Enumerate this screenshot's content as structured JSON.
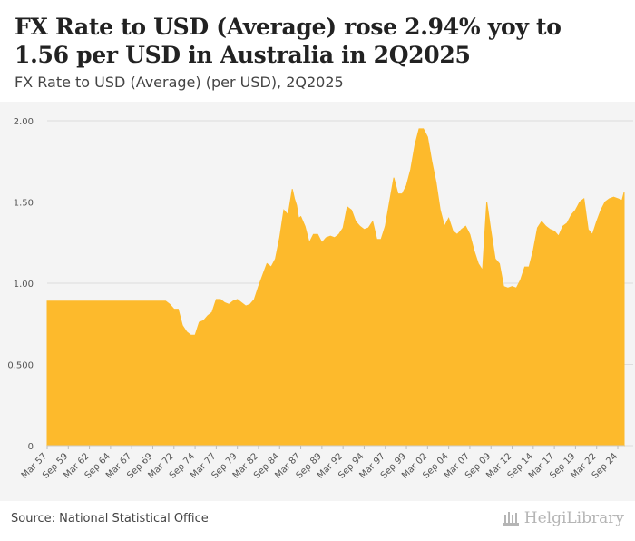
{
  "title": "FX Rate to USD (Average) rose 2.94% yoy to 1.56 per USD in Australia in 2Q2025",
  "subtitle": "FX Rate to USD (Average) (per USD), 2Q2025",
  "source": "Source: National Statistical Office",
  "brand": "HelgiLibrary",
  "colors": {
    "fill": "#FDBA2C",
    "grid": "#dddddd",
    "axis_text": "#555555",
    "background": "#f4f4f4"
  },
  "chart_data": {
    "type": "area",
    "title": "FX Rate to USD (Average) (per USD), 2Q2025",
    "xlabel": "",
    "ylabel": "per USD",
    "ylim": [
      0,
      2
    ],
    "yticks": [
      0,
      0.5,
      1.0,
      1.5,
      2.0
    ],
    "ytick_labels": [
      "0",
      "0.500",
      "1.00",
      "1.50",
      "2.00"
    ],
    "grid": true,
    "x_range": [
      1957.0,
      2025.25
    ],
    "xtick_labels": [
      "Mar 57",
      "Sep 59",
      "Mar 62",
      "Sep 64",
      "Mar 67",
      "Sep 69",
      "Mar 72",
      "Sep 74",
      "Mar 77",
      "Sep 79",
      "Mar 82",
      "Sep 84",
      "Mar 87",
      "Sep 89",
      "Mar 92",
      "Sep 94",
      "Mar 97",
      "Sep 99",
      "Mar 02",
      "Sep 04",
      "Mar 07",
      "Sep 09",
      "Mar 12",
      "Sep 14",
      "Mar 17",
      "Sep 19",
      "Mar 22",
      "Sep 24"
    ],
    "xtick_positions": [
      1957.0,
      1959.5,
      1962.0,
      1964.5,
      1967.0,
      1969.5,
      1972.0,
      1974.5,
      1977.0,
      1979.5,
      1982.0,
      1984.5,
      1987.0,
      1989.5,
      1992.0,
      1994.5,
      1997.0,
      1999.5,
      2002.0,
      2004.5,
      2007.0,
      2009.5,
      2012.0,
      2014.5,
      2017.0,
      2019.5,
      2022.0,
      2024.5
    ],
    "series": [
      {
        "name": "FX Rate to USD (Average)",
        "x": [
          1957.0,
          1971.0,
          1971.5,
          1972.0,
          1972.5,
          1973.0,
          1973.5,
          1974.0,
          1974.5,
          1975.0,
          1975.5,
          1976.0,
          1976.5,
          1977.0,
          1977.5,
          1978.0,
          1978.5,
          1979.0,
          1979.5,
          1980.0,
          1980.5,
          1981.0,
          1981.5,
          1982.0,
          1982.5,
          1983.0,
          1983.5,
          1984.0,
          1984.5,
          1985.0,
          1985.5,
          1986.0,
          1986.25,
          1986.5,
          1986.75,
          1987.0,
          1987.5,
          1988.0,
          1988.5,
          1989.0,
          1989.5,
          1990.0,
          1990.5,
          1991.0,
          1991.5,
          1992.0,
          1992.5,
          1993.0,
          1993.5,
          1994.0,
          1994.5,
          1995.0,
          1995.5,
          1996.0,
          1996.5,
          1997.0,
          1997.5,
          1998.0,
          1998.5,
          1999.0,
          1999.5,
          2000.0,
          2000.5,
          2001.0,
          2001.5,
          2002.0,
          2002.5,
          2003.0,
          2003.5,
          2004.0,
          2004.5,
          2005.0,
          2005.5,
          2006.0,
          2006.5,
          2007.0,
          2007.5,
          2008.0,
          2008.5,
          2009.0,
          2009.5,
          2010.0,
          2010.5,
          2011.0,
          2011.5,
          2012.0,
          2012.5,
          2013.0,
          2013.5,
          2014.0,
          2014.5,
          2015.0,
          2015.5,
          2016.0,
          2016.5,
          2017.0,
          2017.5,
          2018.0,
          2018.5,
          2019.0,
          2019.5,
          2020.0,
          2020.5,
          2021.0,
          2021.5,
          2022.0,
          2022.5,
          2023.0,
          2023.5,
          2024.0,
          2024.5,
          2025.0,
          2025.25
        ],
        "values": [
          0.89,
          0.89,
          0.87,
          0.84,
          0.84,
          0.74,
          0.7,
          0.68,
          0.68,
          0.76,
          0.77,
          0.8,
          0.82,
          0.9,
          0.9,
          0.88,
          0.87,
          0.89,
          0.9,
          0.88,
          0.86,
          0.87,
          0.9,
          0.98,
          1.05,
          1.12,
          1.1,
          1.15,
          1.28,
          1.45,
          1.42,
          1.58,
          1.52,
          1.48,
          1.4,
          1.41,
          1.35,
          1.25,
          1.3,
          1.3,
          1.25,
          1.28,
          1.29,
          1.28,
          1.3,
          1.34,
          1.47,
          1.45,
          1.38,
          1.35,
          1.33,
          1.34,
          1.38,
          1.27,
          1.27,
          1.35,
          1.5,
          1.65,
          1.55,
          1.55,
          1.6,
          1.7,
          1.85,
          1.95,
          1.95,
          1.9,
          1.75,
          1.62,
          1.45,
          1.35,
          1.4,
          1.32,
          1.3,
          1.33,
          1.35,
          1.3,
          1.2,
          1.12,
          1.08,
          1.5,
          1.32,
          1.15,
          1.12,
          0.98,
          0.97,
          0.98,
          0.97,
          1.02,
          1.1,
          1.1,
          1.2,
          1.34,
          1.38,
          1.35,
          1.33,
          1.32,
          1.29,
          1.35,
          1.37,
          1.42,
          1.45,
          1.5,
          1.52,
          1.33,
          1.3,
          1.38,
          1.45,
          1.5,
          1.52,
          1.53,
          1.52,
          1.51,
          1.56
        ]
      }
    ]
  }
}
